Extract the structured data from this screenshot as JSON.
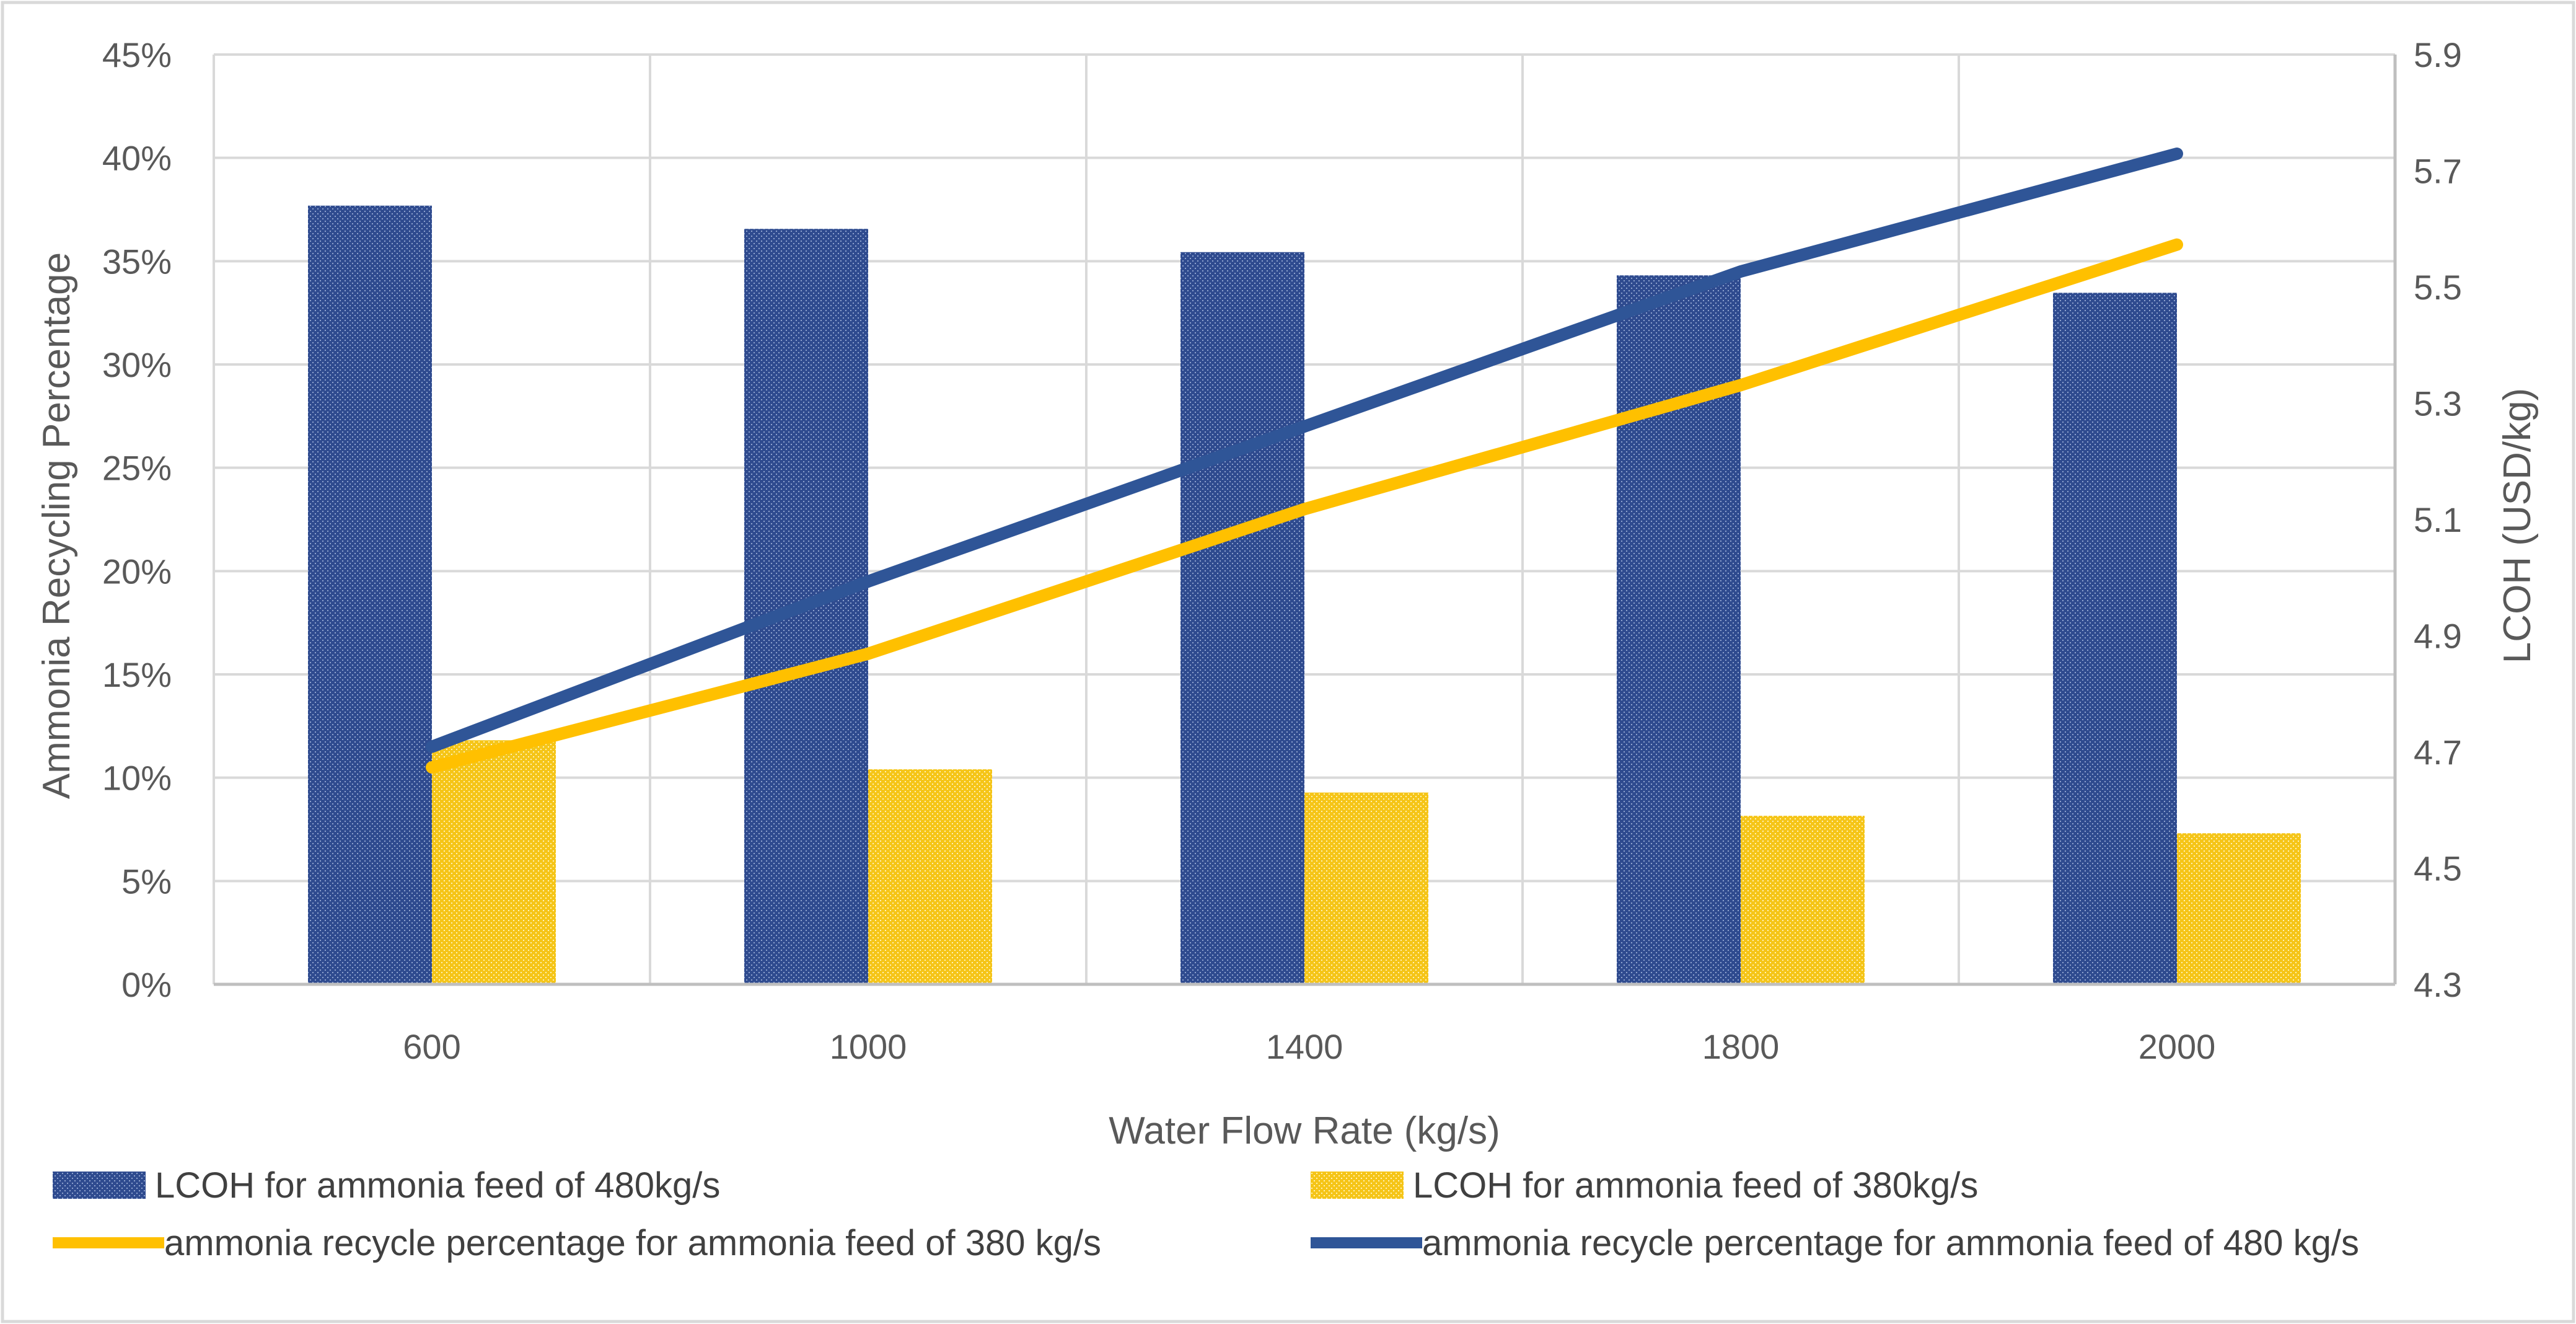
{
  "chart_data": {
    "type": "bar",
    "title": "",
    "xlabel": "Water Flow Rate (kg/s)",
    "ylabel_left": "Ammonia Recycling Percentage",
    "ylabel_right": "LCOH (USD/kg)",
    "categories": [
      "600",
      "1000",
      "1400",
      "1800",
      "2000"
    ],
    "y_left": {
      "min": 0,
      "max": 0.45,
      "step": 0.05,
      "tick_labels": [
        "0%",
        "5%",
        "10%",
        "15%",
        "20%",
        "25%",
        "30%",
        "35%",
        "40%",
        "45%"
      ]
    },
    "y_right": {
      "min": 4.3,
      "max": 5.9,
      "step": 0.2,
      "tick_labels": [
        "4.3",
        "4.5",
        "4.7",
        "4.9",
        "5.1",
        "5.3",
        "5.5",
        "5.7",
        "5.9"
      ]
    },
    "grid": true,
    "legend_position": "bottom",
    "series": [
      {
        "name": "LCOH for ammonia feed of 480kg/s",
        "kind": "bar",
        "axis": "right",
        "color": "#2F4B8F",
        "values": [
          5.64,
          5.6,
          5.56,
          5.52,
          5.49
        ]
      },
      {
        "name": "LCOH for ammonia feed of 380kg/s",
        "kind": "bar",
        "axis": "right",
        "color": "#F5C518",
        "values": [
          4.72,
          4.67,
          4.63,
          4.59,
          4.56
        ]
      },
      {
        "name": "ammonia recycle percentage for ammonia feed of 380 kg/s",
        "kind": "line",
        "axis": "left",
        "color": "#FFC000",
        "values": [
          0.105,
          0.16,
          0.23,
          0.29,
          0.358
        ]
      },
      {
        "name": "ammonia recycle percentage for ammonia feed of 480 kg/s",
        "kind": "line",
        "axis": "left",
        "color": "#2F5597",
        "values": [
          0.115,
          0.195,
          0.27,
          0.345,
          0.402
        ]
      }
    ]
  }
}
